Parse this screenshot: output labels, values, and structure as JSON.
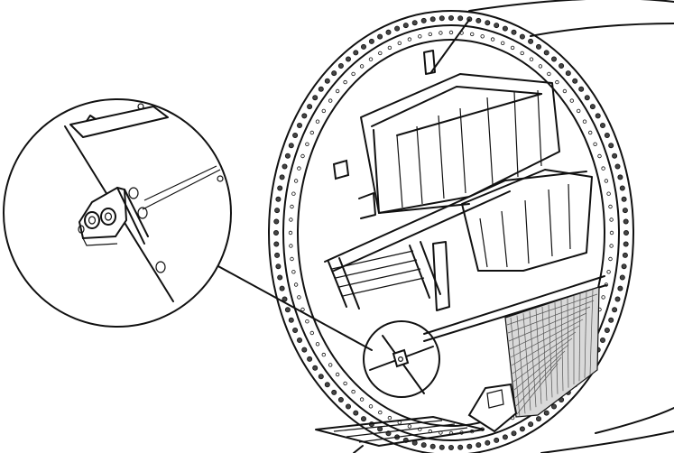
{
  "figure": {
    "colors": {
      "line": "#111111",
      "background": "#ffffff",
      "shade": "#d9d9d9"
    },
    "bolt_ring": {
      "outer_bolt_count": 120,
      "inner_bolt_count": 96
    },
    "detail_callout": {
      "magnified": true,
      "leader_line": true
    }
  }
}
